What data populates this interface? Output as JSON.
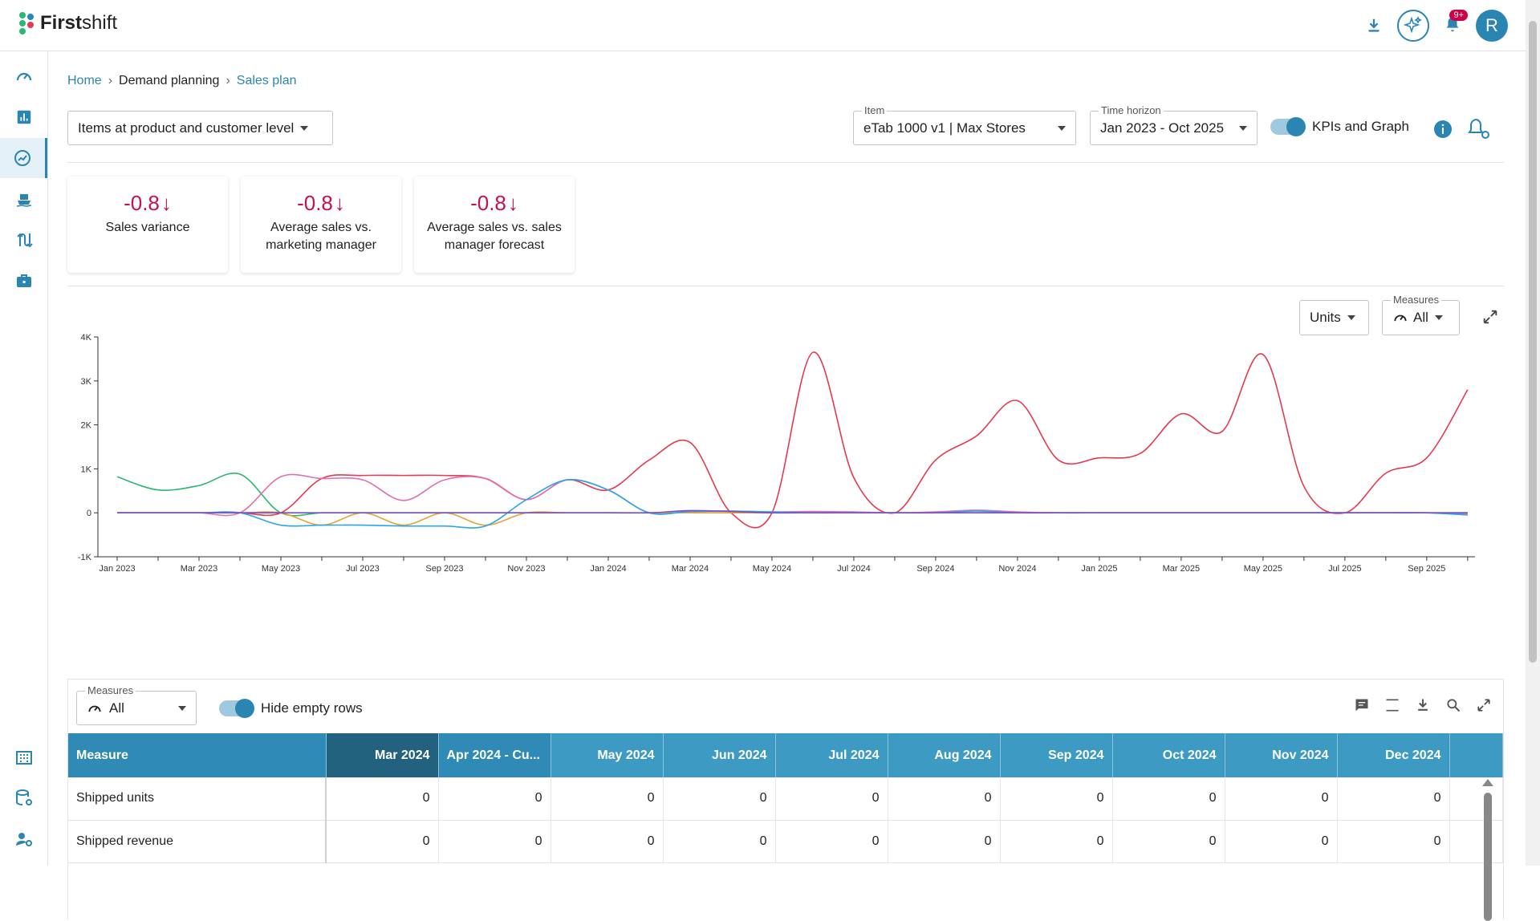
{
  "app": {
    "brand_bold": "First",
    "brand_rest": "shift",
    "notification_count": "9+",
    "avatar_initial": "R"
  },
  "breadcrumb": {
    "home": "Home",
    "section": "Demand planning",
    "current": "Sales plan"
  },
  "filters": {
    "level": "Items at product and customer level",
    "item_label": "Item",
    "item_value": "eTab 1000 v1 | Max Stores",
    "horizon_label": "Time horizon",
    "horizon_value": "Jan 2023 - Oct 2025",
    "kpi_toggle_label": "KPIs and Graph"
  },
  "kpis": [
    {
      "value": "-0.8",
      "label": "Sales variance"
    },
    {
      "value": "-0.8",
      "label": "Average sales vs. marketing manager"
    },
    {
      "value": "-0.8",
      "label": "Average sales vs. sales manager forecast"
    }
  ],
  "chart_controls": {
    "units": "Units",
    "measures_label": "Measures",
    "measures_value": "All"
  },
  "chart_data": {
    "type": "line",
    "x": [
      "Jan 2023",
      "Feb 2023",
      "Mar 2023",
      "Apr 2023",
      "May 2023",
      "Jun 2023",
      "Jul 2023",
      "Aug 2023",
      "Sep 2023",
      "Oct 2023",
      "Nov 2023",
      "Dec 2023",
      "Jan 2024",
      "Feb 2024",
      "Mar 2024",
      "Apr 2024",
      "May 2024",
      "Jun 2024",
      "Jul 2024",
      "Aug 2024",
      "Sep 2024",
      "Oct 2024",
      "Nov 2024",
      "Dec 2024",
      "Jan 2025",
      "Feb 2025",
      "Mar 2025",
      "Apr 2025",
      "May 2025",
      "Jun 2025",
      "Jul 2025",
      "Aug 2025",
      "Sep 2025",
      "Oct 2025"
    ],
    "tick_labels": [
      "Jan 2023",
      "Mar 2023",
      "May 2023",
      "Jul 2023",
      "Sep 2023",
      "Nov 2023",
      "Jan 2024",
      "Mar 2024",
      "May 2024",
      "Jul 2024",
      "Sep 2024",
      "Nov 2024",
      "Jan 2025",
      "Mar 2025",
      "May 2025",
      "Jul 2025",
      "Sep 2025"
    ],
    "y_ticks": [
      "-1K",
      "0",
      "1K",
      "2K",
      "3K",
      "4K"
    ],
    "ylim": [
      -1000,
      4000
    ],
    "series": [
      {
        "color": "#e5394f",
        "values": [
          0,
          0,
          0,
          0,
          0,
          780,
          850,
          850,
          850,
          780,
          300,
          750,
          520,
          1200,
          1600,
          0,
          0,
          3650,
          800,
          0,
          1200,
          1750,
          2550,
          1200,
          1250,
          1350,
          2250,
          1850,
          3600,
          600,
          0,
          900,
          1250,
          2800
        ]
      },
      {
        "color": "#2ab673",
        "values": [
          820,
          520,
          620,
          880,
          0,
          0,
          0,
          0,
          0,
          0,
          0,
          0,
          0,
          0,
          0,
          0,
          0,
          0,
          0,
          0,
          0,
          0,
          0,
          0,
          0,
          0,
          0,
          0,
          0,
          0,
          0,
          0,
          0,
          0
        ]
      },
      {
        "color": "#e06fb0",
        "values": [
          0,
          0,
          0,
          0,
          820,
          780,
          750,
          280,
          750,
          780,
          300,
          750,
          520,
          0,
          30,
          40,
          20,
          30,
          20,
          0,
          20,
          60,
          20,
          0,
          0,
          0,
          0,
          0,
          0,
          0,
          0,
          0,
          0,
          -30
        ]
      },
      {
        "color": "#e8a234",
        "values": [
          0,
          0,
          0,
          0,
          0,
          -280,
          0,
          -280,
          0,
          -280,
          0,
          0,
          0,
          0,
          0,
          0,
          0,
          0,
          0,
          0,
          0,
          0,
          0,
          0,
          0,
          0,
          0,
          0,
          0,
          0,
          0,
          0,
          0,
          0
        ]
      },
      {
        "color": "#2aa6e8",
        "values": [
          0,
          0,
          0,
          0,
          -280,
          -280,
          -280,
          -300,
          -300,
          -300,
          300,
          750,
          520,
          0,
          30,
          40,
          20,
          0,
          0,
          0,
          0,
          40,
          0,
          0,
          0,
          0,
          0,
          0,
          0,
          0,
          0,
          0,
          0,
          -50
        ]
      },
      {
        "color": "#7a4fc4",
        "values": [
          0,
          0,
          0,
          0,
          0,
          0,
          0,
          0,
          0,
          0,
          0,
          0,
          0,
          0,
          50,
          30,
          0,
          0,
          0,
          0,
          0,
          0,
          0,
          0,
          0,
          0,
          0,
          0,
          0,
          0,
          0,
          0,
          0,
          0
        ]
      }
    ]
  },
  "grid": {
    "measures_label": "Measures",
    "measures_value": "All",
    "hide_empty_label": "Hide empty rows",
    "headers": [
      "Measure",
      "Mar 2024",
      "Apr 2024 - Cu...",
      "May 2024",
      "Jun 2024",
      "Jul 2024",
      "Aug 2024",
      "Sep 2024",
      "Oct 2024",
      "Nov 2024",
      "Dec 2024"
    ],
    "rows": [
      {
        "measure": "Shipped units",
        "values": [
          "0",
          "0",
          "0",
          "0",
          "0",
          "0",
          "0",
          "0",
          "0",
          "0"
        ]
      },
      {
        "measure": "Shipped revenue",
        "values": [
          "0",
          "0",
          "0",
          "0",
          "0",
          "0",
          "0",
          "0",
          "0",
          "0"
        ]
      }
    ]
  }
}
